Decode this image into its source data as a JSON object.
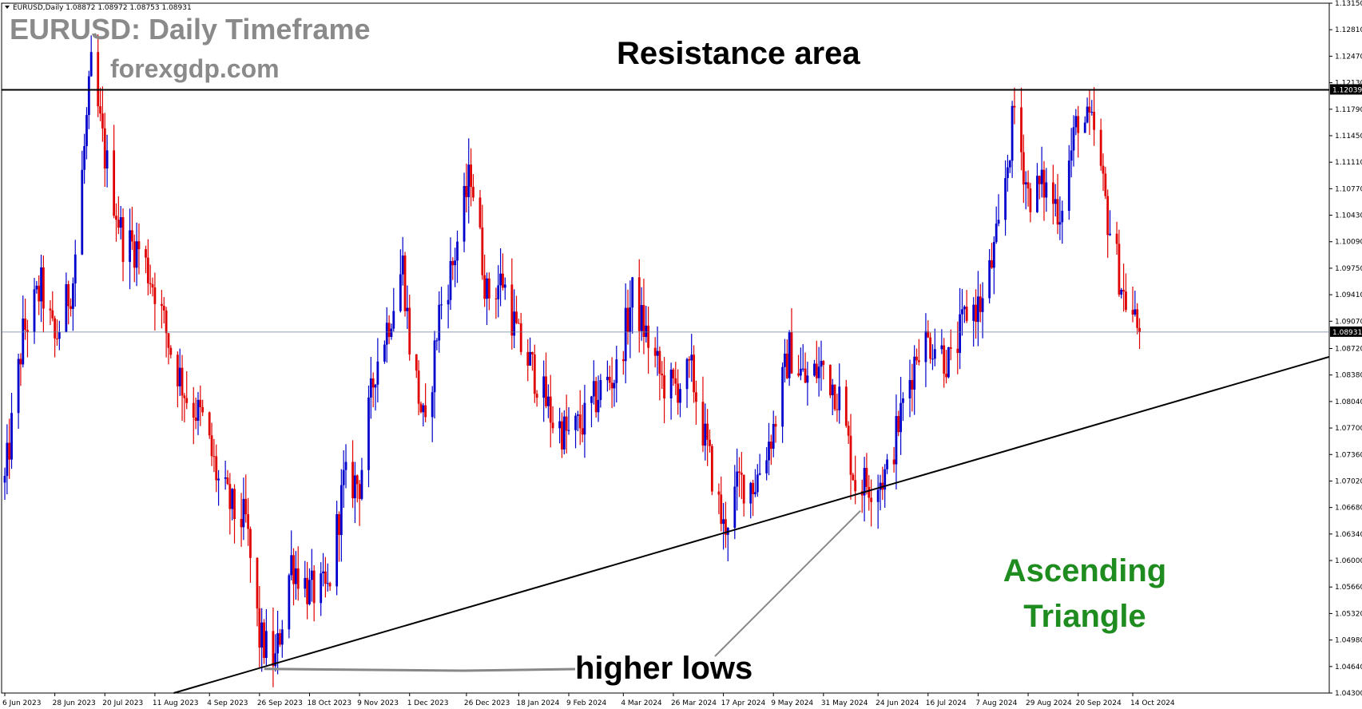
{
  "header": {
    "symbol_line": "EURUSD,Daily  1.08872 1.08972 1.08753 1.08931"
  },
  "overlay": {
    "title": "EURUSD: Daily Timeframe",
    "site": "forexgdp.com",
    "resistance_label": "Resistance area",
    "lows_label": "higher lows",
    "pattern_line1": "Ascending",
    "pattern_line2": "Triangle"
  },
  "colors": {
    "bull": "#0000CC",
    "bear": "#E00000",
    "title_gray": "#8A8A8A",
    "pattern_green": "#1E8C1E",
    "price_line": "#6C7F9A"
  },
  "chart_data": {
    "type": "candlestick",
    "symbol": "EURUSD",
    "timeframe": "Daily",
    "ylim": [
      1.043,
      1.1315
    ],
    "y_ticks": [
      "1.13150",
      "1.12810",
      "1.12470",
      "1.12130",
      "1.11790",
      "1.11450",
      "1.11110",
      "1.10770",
      "1.10430",
      "1.10090",
      "1.09750",
      "1.09410",
      "1.09070",
      "1.08720",
      "1.08380",
      "1.08040",
      "1.07700",
      "1.07360",
      "1.07020",
      "1.06680",
      "1.06340",
      "1.06000",
      "1.05660",
      "1.05320",
      "1.04980",
      "1.04640",
      "1.04300"
    ],
    "x_ticks": [
      "6 Jun 2023",
      "28 Jun 2023",
      "20 Jul 2023",
      "11 Aug 2023",
      "4 Sep 2023",
      "26 Sep 2023",
      "18 Oct 2023",
      "9 Nov 2023",
      "1 Dec 2023",
      "26 Dec 2023",
      "18 Jan 2024",
      "9 Feb 2024",
      "4 Mar 2024",
      "26 Mar 2024",
      "17 Apr 2024",
      "9 May 2024",
      "31 May 2024",
      "24 Jun 2024",
      "16 Jul 2024",
      "7 Aug 2024",
      "29 Aug 2024",
      "20 Sep 2024",
      "14 Oct 2024"
    ],
    "resistance_level": 1.12039,
    "current_price": 1.08931,
    "trendline": {
      "start": [
        "26 Sep 2023",
        1.0462
      ],
      "end": [
        "14 Oct 2024",
        1.0788
      ]
    },
    "anchors": [
      [
        "6 Jun 2023",
        1.07
      ],
      [
        "14 Jun 2023",
        1.089
      ],
      [
        "22 Jun 2023",
        1.095
      ],
      [
        "28 Jun 2023",
        1.088
      ],
      [
        "6 Jul 2023",
        1.096
      ],
      [
        "14 Jul 2023",
        1.123
      ],
      [
        "20 Jul 2023",
        1.112
      ],
      [
        "28 Jul 2023",
        1.101
      ],
      [
        "4 Aug 2023",
        1.1
      ],
      [
        "11 Aug 2023",
        1.095
      ],
      [
        "18 Aug 2023",
        1.087
      ],
      [
        "25 Aug 2023",
        1.081
      ],
      [
        "1 Sep 2023",
        1.078
      ],
      [
        "8 Sep 2023",
        1.07
      ],
      [
        "15 Sep 2023",
        1.066
      ],
      [
        "20 Sep 2023",
        1.065
      ],
      [
        "26 Sep 2023",
        1.05
      ],
      [
        "3 Oct 2023",
        1.047
      ],
      [
        "10 Oct 2023",
        1.06
      ],
      [
        "18 Oct 2023",
        1.056
      ],
      [
        "26 Oct 2023",
        1.056
      ],
      [
        "2 Nov 2023",
        1.07
      ],
      [
        "9 Nov 2023",
        1.07
      ],
      [
        "16 Nov 2023",
        1.085
      ],
      [
        "23 Nov 2023",
        1.092
      ],
      [
        "28 Nov 2023",
        1.098
      ],
      [
        "1 Dec 2023",
        1.088
      ],
      [
        "8 Dec 2023",
        1.076
      ],
      [
        "14 Dec 2023",
        1.092
      ],
      [
        "20 Dec 2023",
        1.098
      ],
      [
        "28 Dec 2023",
        1.11
      ],
      [
        "4 Jan 2024",
        1.094
      ],
      [
        "11 Jan 2024",
        1.096
      ],
      [
        "18 Jan 2024",
        1.088
      ],
      [
        "25 Jan 2024",
        1.084
      ],
      [
        "2 Feb 2024",
        1.078
      ],
      [
        "9 Feb 2024",
        1.076
      ],
      [
        "16 Feb 2024",
        1.078
      ],
      [
        "23 Feb 2024",
        1.082
      ],
      [
        "1 Mar 2024",
        1.084
      ],
      [
        "8 Mar 2024",
        1.094
      ],
      [
        "14 Mar 2024",
        1.089
      ],
      [
        "21 Mar 2024",
        1.083
      ],
      [
        "26 Mar 2024",
        1.082
      ],
      [
        "3 Apr 2024",
        1.084
      ],
      [
        "10 Apr 2024",
        1.074
      ],
      [
        "17 Apr 2024",
        1.064
      ],
      [
        "24 Apr 2024",
        1.07
      ],
      [
        "1 May 2024",
        1.07
      ],
      [
        "9 May 2024",
        1.077
      ],
      [
        "16 May 2024",
        1.087
      ],
      [
        "23 May 2024",
        1.083
      ],
      [
        "31 May 2024",
        1.085
      ],
      [
        "7 Jun 2024",
        1.081
      ],
      [
        "14 Jun 2024",
        1.07
      ],
      [
        "21 Jun 2024",
        1.07
      ],
      [
        "28 Jun 2024",
        1.071
      ],
      [
        "5 Jul 2024",
        1.08
      ],
      [
        "12 Jul 2024",
        1.088
      ],
      [
        "19 Jul 2024",
        1.088
      ],
      [
        "26 Jul 2024",
        1.085
      ],
      [
        "2 Aug 2024",
        1.092
      ],
      [
        "9 Aug 2024",
        1.093
      ],
      [
        "16 Aug 2024",
        1.102
      ],
      [
        "23 Aug 2024",
        1.118
      ],
      [
        "29 Aug 2024",
        1.107
      ],
      [
        "5 Sep 2024",
        1.108
      ],
      [
        "12 Sep 2024",
        1.105
      ],
      [
        "20 Sep 2024",
        1.117
      ],
      [
        "27 Sep 2024",
        1.115
      ],
      [
        "3 Oct 2024",
        1.104
      ],
      [
        "10 Oct 2024",
        1.094
      ],
      [
        "17 Oct 2024",
        1.0893
      ]
    ]
  }
}
